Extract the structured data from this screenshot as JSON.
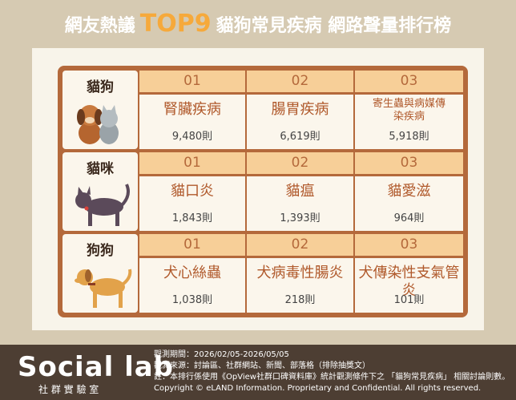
{
  "header": {
    "title_prefix": "網友熱議",
    "title_highlight": "TOP9",
    "title_suffix": "貓狗常見疾病 網路聲量排行榜"
  },
  "table": {
    "groups": [
      {
        "label": "貓狗",
        "items": [
          {
            "rank": "01",
            "disease": "腎臟疾病",
            "count": "9,480則"
          },
          {
            "rank": "02",
            "disease": "腸胃疾病",
            "count": "6,619則"
          },
          {
            "rank": "03",
            "disease": "寄生蟲與病媒傳染疾病",
            "count": "5,918則"
          }
        ]
      },
      {
        "label": "貓咪",
        "items": [
          {
            "rank": "01",
            "disease": "貓口炎",
            "count": "1,843則"
          },
          {
            "rank": "02",
            "disease": "貓瘟",
            "count": "1,393則"
          },
          {
            "rank": "03",
            "disease": "貓愛滋",
            "count": "964則"
          }
        ]
      },
      {
        "label": "狗狗",
        "items": [
          {
            "rank": "01",
            "disease": "犬心絲蟲",
            "count": "1,038則"
          },
          {
            "rank": "02",
            "disease": "犬病毒性腸炎",
            "count": "218則"
          },
          {
            "rank": "03",
            "disease": "犬傳染性支氣管炎",
            "count": "101則"
          }
        ]
      }
    ]
  },
  "footer": {
    "logo": "Social lab",
    "logo_sub": "社 群 實 驗 室",
    "lines": [
      "觀測期間：2026/02/05-2026/05/05",
      "觀測來源：討論區、社群網站、新聞、部落格（排除抽獎文）",
      "註：本排行係使用《OpView社群口碑資料庫》統計觀測條件下之 「貓狗常見疾病」 相關討論則數。",
      "Copyright © eLAND Information. Proprietary and Confidential. All rights reserved."
    ]
  }
}
